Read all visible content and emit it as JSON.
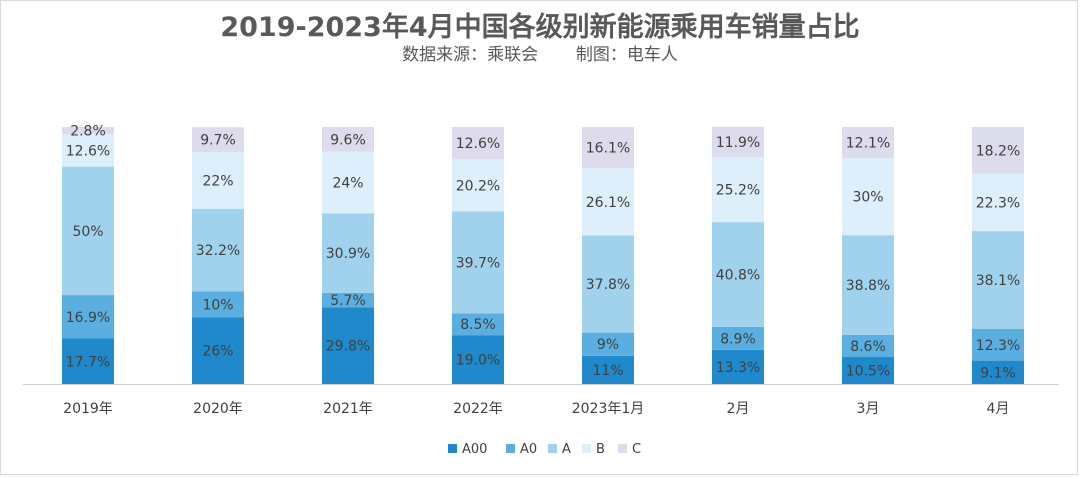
{
  "title": "2019-2023年4月中国各级别新能源乘用车销量占比",
  "subtitle": "数据来源：乘联会       制图：电车人",
  "chart_data": {
    "type": "bar",
    "stacked": true,
    "title": "2019-2023年4月中国各级别新能源乘用车销量占比",
    "subtitle": "数据来源：乘联会       制图：电车人",
    "categories": [
      "2019年",
      "2020年",
      "2021年",
      "2022年",
      "2023年1月",
      "2月",
      "3月",
      "4月"
    ],
    "ylim": [
      0,
      100
    ],
    "grid": false,
    "legend_position": "bottom",
    "series": [
      {
        "name": "A00",
        "color": "#2089CB",
        "values": [
          17.7,
          26,
          29.8,
          19.0,
          11,
          13.3,
          10.5,
          9.1
        ],
        "labels": [
          "17.7%",
          "26%",
          "29.8%",
          "19.0%",
          "11%",
          "13.3%",
          "10.5%",
          "9.1%"
        ]
      },
      {
        "name": "A0",
        "color": "#5AAFE0",
        "values": [
          16.9,
          10,
          5.7,
          8.5,
          9,
          8.9,
          8.6,
          12.3
        ],
        "labels": [
          "16.9%",
          "10%",
          "5.7%",
          "8.5%",
          "9%",
          "8.9%",
          "8.6%",
          "12.3%"
        ]
      },
      {
        "name": "A",
        "color": "#A1D2ED",
        "values": [
          50,
          32.2,
          30.9,
          39.7,
          37.8,
          40.8,
          38.8,
          38.1
        ],
        "labels": [
          "50%",
          "32.2%",
          "30.9%",
          "39.7%",
          "37.8%",
          "40.8%",
          "38.8%",
          "38.1%"
        ]
      },
      {
        "name": "B",
        "color": "#DDEFFA",
        "values": [
          12.6,
          22,
          24,
          20.2,
          26.1,
          25.2,
          30,
          22.3
        ],
        "labels": [
          "12.6%",
          "22%",
          "24%",
          "20.2%",
          "26.1%",
          "25.2%",
          "30%",
          "22.3%"
        ]
      },
      {
        "name": "C",
        "color": "#DCDCEC",
        "values": [
          2.8,
          9.7,
          9.6,
          12.6,
          16.1,
          11.9,
          12.1,
          18.2
        ],
        "labels": [
          "2.8%",
          "9.7%",
          "9.6%",
          "12.6%",
          "16.1%",
          "11.9%",
          "12.1%",
          "18.2%"
        ]
      }
    ]
  }
}
